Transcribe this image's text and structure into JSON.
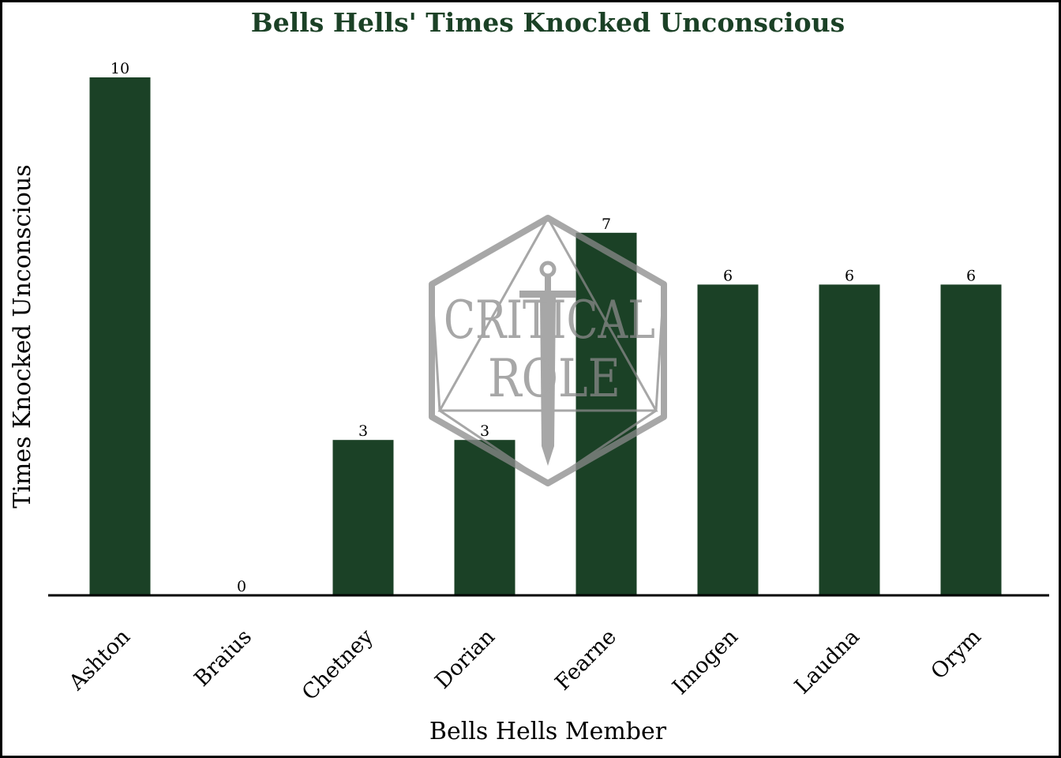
{
  "chart_data": {
    "type": "bar",
    "title": "Bells Hells' Times Knocked Unconscious",
    "xlabel": "Bells Hells Member",
    "ylabel": "Times Knocked Unconscious",
    "categories": [
      "Ashton",
      "Braius",
      "Chetney",
      "Dorian",
      "Fearne",
      "Imogen",
      "Laudna",
      "Orym"
    ],
    "values": [
      10,
      0,
      3,
      3,
      7,
      6,
      6,
      6
    ],
    "ylim": [
      0,
      10
    ],
    "grid": false,
    "legend": "none",
    "colors": {
      "bar": "#1b4126",
      "title": "#1b4126",
      "watermark": "#8a8a8a"
    }
  },
  "watermark": {
    "line1": "CRITICAL",
    "line2": "ROLE"
  }
}
